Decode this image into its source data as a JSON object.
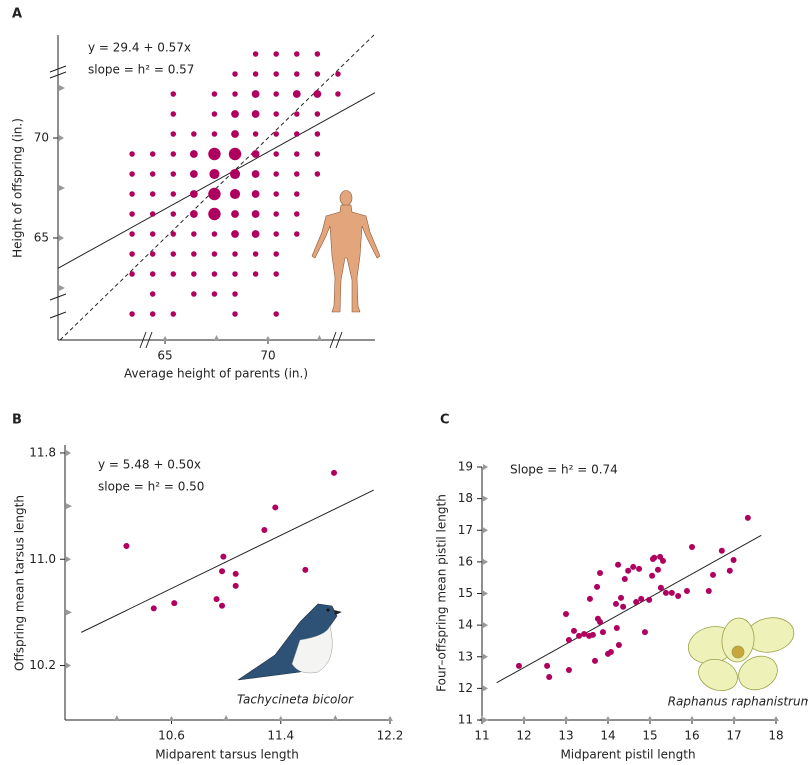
{
  "chart_data": [
    {
      "type": "scatter",
      "panel": "A",
      "annotations": [
        "y = 29.4 + 0.57x",
        "slope = h² = 0.57"
      ],
      "x_label": "Average height of parents (in.)",
      "y_label": "Height of offspring (in.)",
      "xlim": [
        59.8,
        75.2
      ],
      "ylim": [
        59.9,
        75.15
      ],
      "xticks": [
        65,
        70
      ],
      "yticks": [
        65,
        70
      ],
      "minor_xticks": [
        67.5,
        72.5
      ],
      "minor_yticks": [
        62.5,
        67.5,
        72.5
      ],
      "identity_line": true,
      "color": "#b0005f",
      "fit": {
        "intercept": 29.4,
        "slope": 0.57
      },
      "x": [
        69.4,
        70.4,
        71.4,
        72.4,
        68.4,
        69.4,
        70.4,
        71.4,
        72.4,
        73.4,
        65.4,
        67.4,
        68.4,
        69.4,
        70.4,
        71.4,
        72.4,
        73.4,
        65.4,
        67.4,
        68.4,
        69.4,
        70.4,
        71.4,
        72.4,
        65.4,
        66.4,
        67.4,
        68.4,
        69.4,
        70.4,
        71.4,
        72.4,
        63.4,
        64.4,
        65.4,
        66.4,
        67.4,
        68.4,
        69.4,
        70.4,
        71.4,
        72.4,
        63.4,
        64.4,
        65.4,
        66.4,
        67.4,
        68.4,
        69.4,
        70.4,
        71.4,
        72.4,
        63.4,
        64.4,
        65.4,
        66.4,
        67.4,
        68.4,
        69.4,
        70.4,
        71.4,
        63.4,
        64.4,
        65.4,
        66.4,
        67.4,
        68.4,
        69.4,
        70.4,
        71.4,
        63.4,
        64.4,
        65.4,
        66.4,
        67.4,
        68.4,
        69.4,
        70.4,
        71.4,
        63.4,
        64.4,
        65.4,
        66.4,
        67.4,
        68.4,
        69.4,
        70.4,
        63.4,
        64.4,
        65.4,
        66.4,
        67.4,
        68.4,
        69.4,
        70.4,
        64.4,
        66.4,
        67.4,
        68.4,
        63.4,
        64.4,
        65.4,
        68.4,
        70.4
      ],
      "y": [
        74.2,
        74.2,
        74.2,
        74.2,
        73.2,
        73.2,
        73.2,
        73.2,
        73.2,
        73.2,
        72.2,
        72.2,
        72.2,
        72.2,
        72.2,
        72.2,
        72.2,
        72.2,
        71.2,
        71.2,
        71.2,
        71.2,
        71.2,
        71.2,
        71.2,
        70.2,
        70.2,
        70.2,
        70.2,
        70.2,
        70.2,
        70.2,
        70.2,
        69.2,
        69.2,
        69.2,
        69.2,
        69.2,
        69.2,
        69.2,
        69.2,
        69.2,
        69.2,
        68.2,
        68.2,
        68.2,
        68.2,
        68.2,
        68.2,
        68.2,
        68.2,
        68.2,
        68.2,
        67.2,
        67.2,
        67.2,
        67.2,
        67.2,
        67.2,
        67.2,
        67.2,
        67.2,
        66.2,
        66.2,
        66.2,
        66.2,
        66.2,
        66.2,
        66.2,
        66.2,
        66.2,
        65.2,
        65.2,
        65.2,
        65.2,
        65.2,
        65.2,
        65.2,
        65.2,
        65.2,
        64.2,
        64.2,
        64.2,
        64.2,
        64.2,
        64.2,
        64.2,
        64.2,
        63.2,
        63.2,
        63.2,
        63.2,
        63.2,
        63.2,
        63.2,
        63.2,
        62.2,
        62.2,
        62.2,
        62.2,
        61.2,
        61.2,
        61.2,
        61.2,
        61.2
      ],
      "sizes": [
        1,
        1,
        1,
        1,
        1,
        1,
        1,
        1,
        1,
        1,
        1,
        1,
        1,
        2,
        1,
        2,
        2,
        1,
        1,
        1,
        2,
        2,
        1,
        1,
        1,
        1,
        1,
        1,
        2,
        1,
        1,
        1,
        1,
        1,
        1,
        1,
        2,
        4,
        4,
        2,
        1,
        1,
        1,
        1,
        1,
        1,
        2,
        3,
        3,
        2,
        1,
        1,
        1,
        1,
        1,
        1,
        2,
        4,
        3,
        2,
        1,
        1,
        1,
        1,
        1,
        2,
        4,
        2,
        2,
        1,
        1,
        1,
        1,
        1,
        1,
        1,
        2,
        2,
        1,
        1,
        1,
        1,
        1,
        1,
        1,
        1,
        1,
        1,
        1,
        1,
        1,
        1,
        1,
        1,
        1,
        1,
        1,
        1,
        1,
        1,
        1,
        1,
        1,
        1,
        1
      ]
    },
    {
      "type": "scatter",
      "panel": "B",
      "annotations": [
        "y = 5.48 + 0.50x",
        "slope = h² = 0.50"
      ],
      "species": "Tachycineta bicolor",
      "x_label": "Midparent tarsus length",
      "y_label": "Offspring mean tarsus length",
      "xlim": [
        9.82,
        12.2
      ],
      "ylim": [
        9.79,
        11.86
      ],
      "xticks": [
        10.6,
        11.4,
        12.2
      ],
      "yticks": [
        10.2,
        {
          "value": 11,
          "label": "11.0"
        },
        11.8
      ],
      "minor_xticks": [
        10.2,
        11,
        11.8
      ],
      "minor_yticks": [
        10.6,
        11.4
      ],
      "color": "#b0005f",
      "fit": {
        "intercept": 5.48,
        "slope": 0.5
      },
      "x": [
        10.27,
        10.47,
        10.62,
        10.93,
        10.97,
        10.98,
        10.97,
        11.07,
        11.07,
        11.28,
        11.36,
        11.58,
        11.79
      ],
      "y": [
        11.1,
        10.63,
        10.67,
        10.7,
        10.65,
        11.02,
        10.91,
        10.89,
        10.8,
        11.22,
        11.39,
        10.92,
        11.65
      ]
    },
    {
      "type": "scatter",
      "panel": "C",
      "annotations": [
        "Slope = h² = 0.74"
      ],
      "species": "Raphanus raphanistrum",
      "x_label": "Midparent pistil length",
      "y_label": "Four–offspring mean pistil length",
      "xlim": [
        11,
        18
      ],
      "ylim": [
        11,
        19
      ],
      "xticks": [
        11,
        12,
        13,
        14,
        15,
        16,
        17,
        18
      ],
      "yticks": [
        11,
        12,
        13,
        14,
        15,
        16,
        17,
        18,
        19
      ],
      "color": "#b0005f",
      "fit": {
        "intercept": 3.78,
        "slope": 0.74
      },
      "x": [
        11.88,
        12.55,
        12.6,
        13.0,
        13.07,
        13.07,
        13.19,
        13.31,
        13.43,
        13.55,
        13.57,
        13.64,
        13.69,
        13.74,
        13.76,
        13.81,
        13.81,
        13.88,
        14.0,
        14.07,
        14.19,
        14.21,
        14.24,
        14.26,
        14.31,
        14.36,
        14.4,
        14.48,
        14.6,
        14.67,
        14.74,
        14.79,
        14.88,
        14.98,
        15.05,
        15.07,
        15.1,
        15.19,
        15.24,
        15.26,
        15.31,
        15.38,
        15.52,
        15.67,
        15.88,
        16.0,
        16.4,
        16.5,
        16.71,
        16.9,
        16.99,
        17.33
      ],
      "y": [
        12.71,
        12.71,
        12.36,
        14.35,
        13.53,
        12.58,
        13.82,
        13.66,
        13.72,
        13.66,
        14.83,
        13.69,
        12.87,
        15.21,
        14.2,
        14.1,
        15.65,
        13.78,
        13.09,
        13.15,
        14.67,
        13.91,
        15.91,
        13.37,
        14.86,
        14.58,
        15.46,
        15.72,
        15.84,
        14.73,
        15.78,
        14.83,
        13.78,
        14.8,
        15.56,
        16.09,
        16.13,
        15.75,
        16.16,
        15.18,
        16.03,
        15.02,
        15.02,
        14.92,
        15.08,
        16.47,
        15.08,
        15.59,
        16.35,
        15.72,
        16.06,
        17.39
      ]
    }
  ]
}
